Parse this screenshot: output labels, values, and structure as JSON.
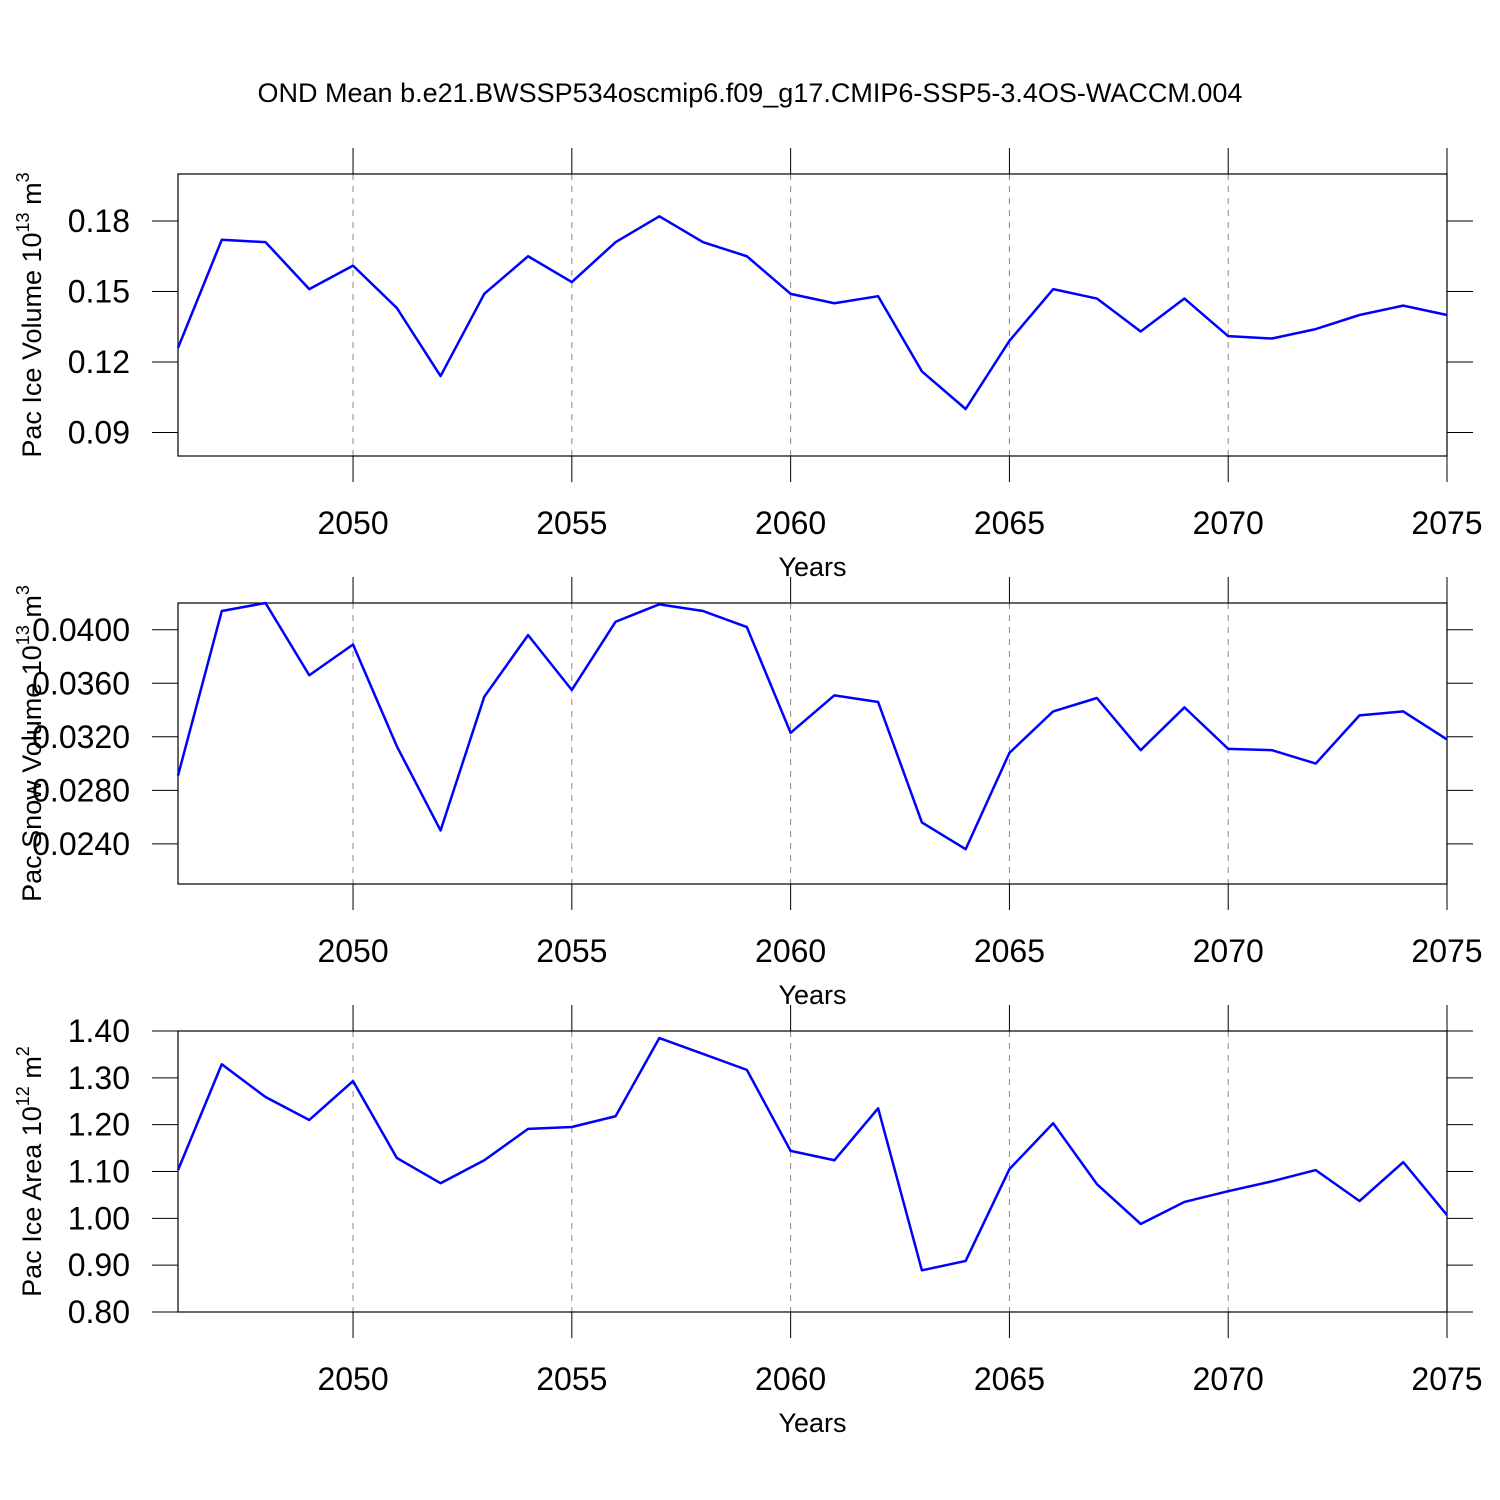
{
  "chart_data": [
    {
      "type": "line",
      "title": "OND Mean b.e21.BWSSP534oscmip6.f09_g17.CMIP6-SSP5-3.4OS-WACCM.004",
      "x_label": "Years",
      "y_label": [
        "Pac Ice Volume 10",
        "13",
        " m",
        "3"
      ],
      "x": [
        2046,
        2047,
        2048,
        2049,
        2050,
        2051,
        2052,
        2053,
        2054,
        2055,
        2056,
        2057,
        2058,
        2059,
        2060,
        2061,
        2062,
        2063,
        2064,
        2065,
        2066,
        2067,
        2068,
        2069,
        2070,
        2071,
        2072,
        2073,
        2074,
        2075
      ],
      "xlim": [
        2046,
        2075
      ],
      "xticks": [
        2050,
        2055,
        2060,
        2065,
        2070,
        2075
      ],
      "ylim": [
        0.08,
        0.2
      ],
      "yticks": [
        0.09,
        0.12,
        0.15,
        0.18
      ],
      "grid": true,
      "series": [
        {
          "color": "#0000ff",
          "values": [
            0.126,
            0.172,
            0.171,
            0.151,
            0.161,
            0.143,
            0.114,
            0.149,
            0.165,
            0.154,
            0.171,
            0.182,
            0.171,
            0.165,
            0.149,
            0.145,
            0.148,
            0.116,
            0.1,
            0.129,
            0.151,
            0.147,
            0.133,
            0.147,
            0.131,
            0.13,
            0.134,
            0.14,
            0.144,
            0.14
          ]
        }
      ]
    },
    {
      "type": "line",
      "x_label": "Years",
      "y_label": [
        "Pac Snow Volume 10",
        "13",
        " m",
        "3"
      ],
      "x": [
        2046,
        2047,
        2048,
        2049,
        2050,
        2051,
        2052,
        2053,
        2054,
        2055,
        2056,
        2057,
        2058,
        2059,
        2060,
        2061,
        2062,
        2063,
        2064,
        2065,
        2066,
        2067,
        2068,
        2069,
        2070,
        2071,
        2072,
        2073,
        2074,
        2075
      ],
      "xlim": [
        2046,
        2075
      ],
      "xticks": [
        2050,
        2055,
        2060,
        2065,
        2070,
        2075
      ],
      "ylim": [
        0.021,
        0.042
      ],
      "yticks": [
        {
          "value": 0.024,
          "label": "0.0240"
        },
        {
          "value": 0.028,
          "label": "0.0280"
        },
        {
          "value": 0.032,
          "label": "0.0320"
        },
        {
          "value": 0.036,
          "label": "0.0360"
        },
        {
          "value": 0.04,
          "label": "0.0400"
        }
      ],
      "grid": true,
      "series": [
        {
          "color": "#0000ff",
          "values": [
            0.0291,
            0.0414,
            0.042,
            0.0366,
            0.0389,
            0.0313,
            0.025,
            0.035,
            0.0396,
            0.0355,
            0.0406,
            0.0419,
            0.0414,
            0.0402,
            0.0323,
            0.0351,
            0.0346,
            0.0256,
            0.0236,
            0.0308,
            0.0339,
            0.0349,
            0.031,
            0.0342,
            0.0311,
            0.031,
            0.03,
            0.0336,
            0.0339,
            0.0318
          ]
        }
      ]
    },
    {
      "type": "line",
      "x_label": "Years",
      "y_label": [
        "Pac Ice Area 10",
        "12",
        " m",
        "2"
      ],
      "x": [
        2046,
        2047,
        2048,
        2049,
        2050,
        2051,
        2052,
        2053,
        2054,
        2055,
        2056,
        2057,
        2058,
        2059,
        2060,
        2061,
        2062,
        2063,
        2064,
        2065,
        2066,
        2067,
        2068,
        2069,
        2070,
        2071,
        2072,
        2073,
        2074,
        2075
      ],
      "xlim": [
        2046,
        2075
      ],
      "xticks": [
        2050,
        2055,
        2060,
        2065,
        2070,
        2075
      ],
      "ylim": [
        0.8,
        1.4
      ],
      "yticks": [
        {
          "value": 0.8,
          "label": "0.80"
        },
        {
          "value": 0.9,
          "label": "0.90"
        },
        {
          "value": 1.0,
          "label": "1.00"
        },
        {
          "value": 1.1,
          "label": "1.10"
        },
        {
          "value": 1.2,
          "label": "1.20"
        },
        {
          "value": 1.3,
          "label": "1.30"
        },
        {
          "value": 1.4,
          "label": "1.40"
        }
      ],
      "grid": true,
      "series": [
        {
          "color": "#0000ff",
          "values": [
            1.103,
            1.329,
            1.259,
            1.21,
            1.293,
            1.129,
            1.075,
            1.124,
            1.191,
            1.195,
            1.218,
            1.385,
            1.351,
            1.317,
            1.144,
            1.124,
            1.235,
            0.889,
            0.909,
            1.105,
            1.203,
            1.073,
            0.988,
            1.035,
            1.058,
            1.079,
            1.103,
            1.037,
            1.12,
            1.007
          ]
        }
      ]
    }
  ]
}
